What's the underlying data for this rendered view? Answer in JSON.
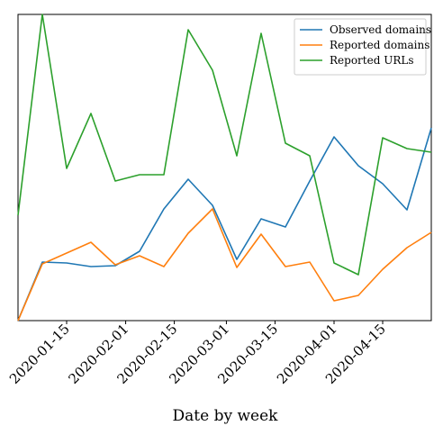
{
  "chart_data": {
    "type": "line",
    "title": "",
    "xlabel": "Date by week",
    "ylabel": "",
    "x": [
      "2020-01-01",
      "2020-01-08",
      "2020-01-15",
      "2020-01-22",
      "2020-01-29",
      "2020-02-05",
      "2020-02-12",
      "2020-02-19",
      "2020-02-26",
      "2020-03-04",
      "2020-03-11",
      "2020-03-18",
      "2020-03-25",
      "2020-04-01",
      "2020-04-08",
      "2020-04-15",
      "2020-04-22",
      "2020-04-29"
    ],
    "xticks": [
      "2020-01-15",
      "2020-02-01",
      "2020-02-15",
      "2020-03-01",
      "2020-03-15",
      "2020-04-01",
      "2020-04-15"
    ],
    "xlim": [
      "2020-01-01",
      "2020-04-29"
    ],
    "ylim": [
      0,
      340
    ],
    "grid": false,
    "legend_position": "top-right",
    "series": [
      {
        "name": "Observed domains",
        "color": "#1f77b4",
        "values": [
          0,
          65,
          64,
          60,
          61,
          77,
          124,
          157,
          128,
          68,
          113,
          104,
          155,
          204,
          172,
          152,
          123,
          214
        ]
      },
      {
        "name": "Reported domains",
        "color": "#ff7f0e",
        "values": [
          0,
          63,
          75,
          87,
          62,
          72,
          60,
          97,
          124,
          59,
          96,
          60,
          65,
          22,
          28,
          57,
          81,
          98
        ]
      },
      {
        "name": "Reported URLs",
        "color": "#2ca02c",
        "values": [
          117,
          340,
          169,
          230,
          155,
          162,
          162,
          323,
          278,
          183,
          319,
          197,
          183,
          64,
          51,
          203,
          191,
          187
        ]
      }
    ]
  }
}
